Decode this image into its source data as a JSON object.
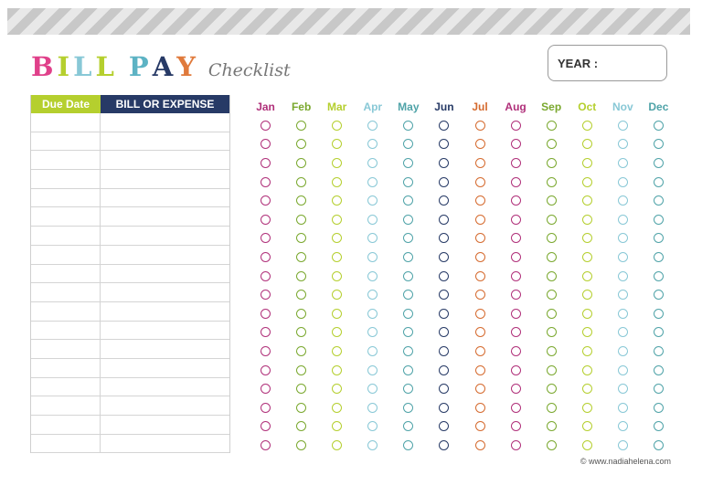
{
  "title": {
    "letters": [
      {
        "char": "B",
        "color": "#e0408a"
      },
      {
        "char": "I",
        "color": "#b5cf2e"
      },
      {
        "char": "L",
        "color": "#88c8d6"
      },
      {
        "char": "L",
        "color": "#b5cf2e"
      },
      {
        "char": " ",
        "color": "#ffffff"
      },
      {
        "char": "P",
        "color": "#5db3c4"
      },
      {
        "char": "A",
        "color": "#273a66"
      },
      {
        "char": "Y",
        "color": "#e07a3c"
      }
    ],
    "subtitle": "Checklist"
  },
  "year_label": "YEAR :",
  "table": {
    "due_date_header": "Due Date",
    "bill_header": "BILL OR EXPENSE",
    "row_count": 18
  },
  "months": [
    {
      "label": "Jan",
      "color": "#b0307a"
    },
    {
      "label": "Feb",
      "color": "#7aa82e"
    },
    {
      "label": "Mar",
      "color": "#b5cf2e"
    },
    {
      "label": "Apr",
      "color": "#88c8d6"
    },
    {
      "label": "May",
      "color": "#4fa3a8"
    },
    {
      "label": "Jun",
      "color": "#273a66"
    },
    {
      "label": "Jul",
      "color": "#d56a2e"
    },
    {
      "label": "Aug",
      "color": "#b0307a"
    },
    {
      "label": "Sep",
      "color": "#7aa82e"
    },
    {
      "label": "Oct",
      "color": "#b5cf2e"
    },
    {
      "label": "Nov",
      "color": "#88c8d6"
    },
    {
      "label": "Dec",
      "color": "#4fa3a8"
    }
  ],
  "checkbox_rows": 18,
  "footer": "© www.nadiahelena.com"
}
